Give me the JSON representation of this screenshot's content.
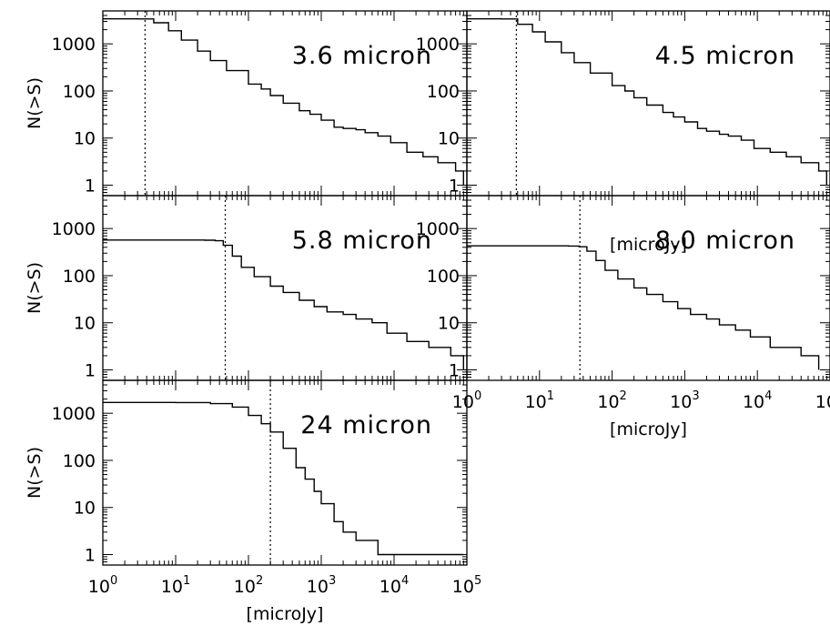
{
  "chart_data": [
    {
      "type": "line",
      "step": true,
      "panel": "3.6",
      "label": "3.6 micron",
      "ylabel": "N(>S)",
      "xlabel": "",
      "xscale": "log",
      "yscale": "log",
      "xlim": [
        1,
        100000
      ],
      "ylim": [
        0.6,
        5000
      ],
      "xticks": [
        "10^0",
        "10^1",
        "10^2",
        "10^3",
        "10^4",
        "10^5"
      ],
      "yticks": [
        "1",
        "10",
        "100",
        "1000"
      ],
      "x_tick_labels_shown": false,
      "threshold": 3.8,
      "x": [
        1,
        2,
        3,
        5,
        8,
        12,
        20,
        30,
        50,
        100,
        150,
        200,
        300,
        500,
        700,
        1000,
        1500,
        2000,
        3000,
        4000,
        6000,
        9000,
        15000,
        25000,
        40000,
        70000,
        90000
      ],
      "y": [
        3400,
        3400,
        3380,
        2800,
        1900,
        1200,
        700,
        440,
        270,
        140,
        110,
        80,
        55,
        38,
        32,
        24,
        17,
        16,
        15,
        13,
        11,
        8,
        5,
        4,
        3,
        2,
        1
      ]
    },
    {
      "type": "line",
      "step": true,
      "panel": "4.5",
      "label": "4.5 micron",
      "ylabel": "",
      "xlabel": "[microJy]",
      "xscale": "log",
      "yscale": "log",
      "xlim": [
        1,
        100000
      ],
      "ylim": [
        0.6,
        5000
      ],
      "xticks": [
        "10^0",
        "10^1",
        "10^2",
        "10^3",
        "10^4",
        "10^5"
      ],
      "yticks": [
        "1",
        "10",
        "100",
        "1000"
      ],
      "x_tick_labels_shown": false,
      "threshold": 4.8,
      "x": [
        1,
        2,
        3,
        5,
        8,
        12,
        20,
        30,
        50,
        100,
        150,
        200,
        300,
        500,
        700,
        1000,
        1500,
        2000,
        3000,
        4000,
        6000,
        9000,
        15000,
        25000,
        40000,
        70000,
        90000
      ],
      "y": [
        3400,
        3400,
        3380,
        2600,
        1800,
        1100,
        650,
        400,
        240,
        130,
        100,
        72,
        50,
        35,
        28,
        22,
        16,
        14,
        12,
        11,
        9,
        6,
        5,
        4,
        3,
        2,
        1
      ]
    },
    {
      "type": "line",
      "step": true,
      "panel": "5.8",
      "label": "5.8 micron",
      "ylabel": "N(>S)",
      "xlabel": "",
      "xscale": "log",
      "yscale": "log",
      "xlim": [
        1,
        100000
      ],
      "ylim": [
        0.6,
        5000
      ],
      "xticks": [
        "10^0",
        "10^1",
        "10^2",
        "10^3",
        "10^4",
        "10^5"
      ],
      "yticks": [
        "1",
        "10",
        "100",
        "1000"
      ],
      "x_tick_labels_shown": false,
      "threshold": 48,
      "x": [
        1,
        10,
        25,
        35,
        45,
        60,
        80,
        120,
        200,
        300,
        500,
        800,
        1200,
        2000,
        3000,
        5000,
        8000,
        15000,
        30000,
        60000,
        90000
      ],
      "y": [
        570,
        570,
        565,
        550,
        440,
        260,
        150,
        95,
        60,
        44,
        30,
        22,
        17,
        15,
        12,
        10,
        6,
        4,
        3,
        2,
        1
      ]
    },
    {
      "type": "line",
      "step": true,
      "panel": "8.0",
      "label": "8.0 micron",
      "ylabel": "",
      "xlabel": "[microJy]",
      "xscale": "log",
      "yscale": "log",
      "xlim": [
        1,
        100000
      ],
      "ylim": [
        0.6,
        5000
      ],
      "xticks": [
        "10^0",
        "10^1",
        "10^2",
        "10^3",
        "10^4",
        "10^5"
      ],
      "yticks": [
        "1",
        "10",
        "100",
        "1000"
      ],
      "x_tick_labels_shown": true,
      "threshold": 36,
      "x": [
        1,
        10,
        25,
        35,
        45,
        60,
        80,
        120,
        200,
        300,
        500,
        800,
        1200,
        2000,
        3000,
        5000,
        8000,
        15000,
        40000,
        70000
      ],
      "y": [
        430,
        430,
        425,
        410,
        330,
        210,
        130,
        85,
        55,
        40,
        28,
        20,
        15,
        12,
        9,
        7,
        5,
        3,
        2,
        1
      ]
    },
    {
      "type": "line",
      "step": true,
      "panel": "24",
      "label": "24 micron",
      "ylabel": "N(>S)",
      "xlabel": "[microJy]",
      "xscale": "log",
      "yscale": "log",
      "xlim": [
        1,
        100000
      ],
      "ylim": [
        0.6,
        5000
      ],
      "xticks": [
        "10^0",
        "10^1",
        "10^2",
        "10^3",
        "10^4",
        "10^5"
      ],
      "yticks": [
        "1",
        "10",
        "100",
        "1000"
      ],
      "x_tick_labels_shown": true,
      "threshold": 200,
      "x": [
        1,
        10,
        30,
        60,
        100,
        150,
        200,
        300,
        450,
        600,
        800,
        1000,
        1500,
        2000,
        3000,
        6000,
        90000
      ],
      "y": [
        1700,
        1690,
        1600,
        1350,
        900,
        600,
        400,
        180,
        70,
        40,
        22,
        12,
        5,
        3,
        2,
        1,
        1
      ]
    }
  ]
}
